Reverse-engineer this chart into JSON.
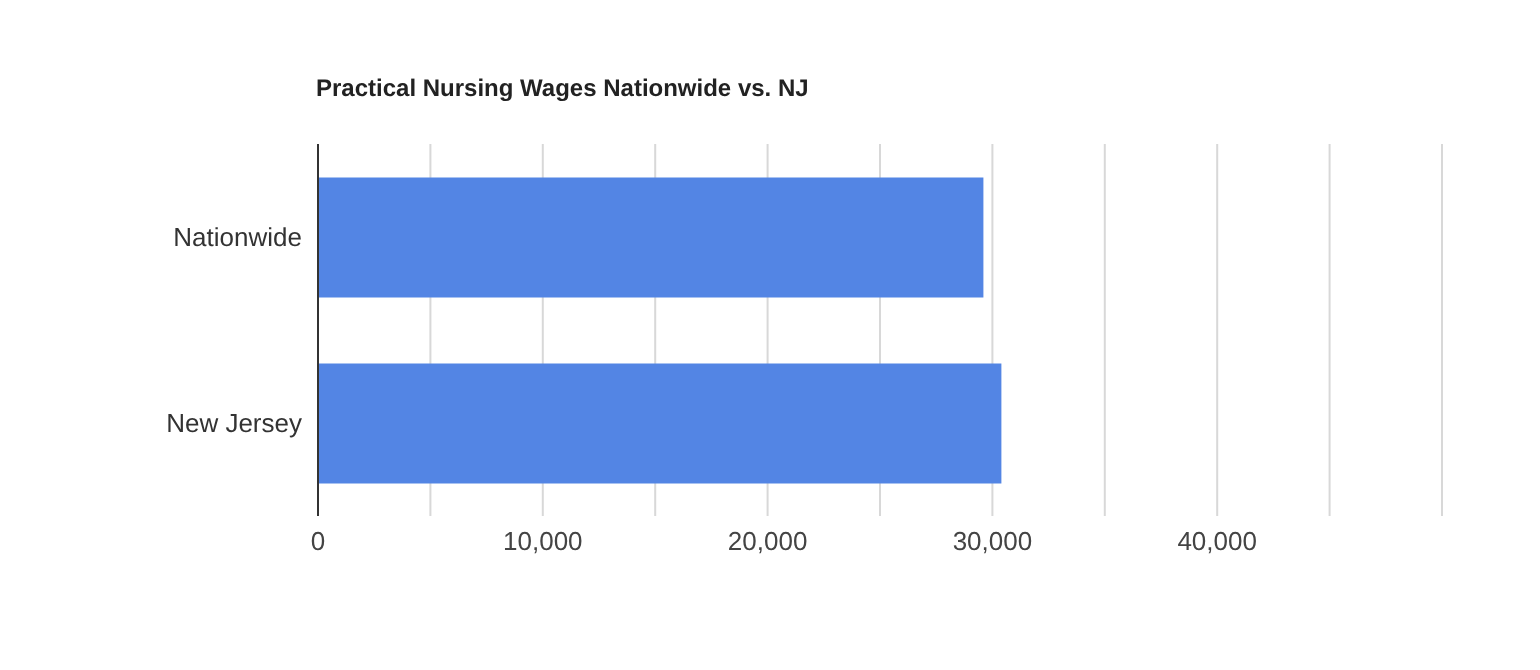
{
  "chart_data": {
    "type": "bar",
    "orientation": "horizontal",
    "title": "Practical Nursing Wages Nationwide vs. NJ",
    "categories": [
      "Nationwide",
      "New Jersey"
    ],
    "values": [
      29600,
      30400
    ],
    "color": "#5385e4",
    "xlim": [
      0,
      50000
    ],
    "xticks": [
      0,
      {
        "value": 5000,
        "label": null
      },
      {
        "value": 10000,
        "label": "10,000"
      },
      {
        "value": 15000,
        "label": null
      },
      {
        "value": 20000,
        "label": "20,000"
      },
      {
        "value": 25000,
        "label": null
      },
      {
        "value": 30000,
        "label": "30,000"
      },
      {
        "value": 35000,
        "label": null
      },
      {
        "value": 40000,
        "label": "40,000"
      },
      {
        "value": 45000,
        "label": null
      }
    ],
    "grid": "x",
    "legend": false
  }
}
